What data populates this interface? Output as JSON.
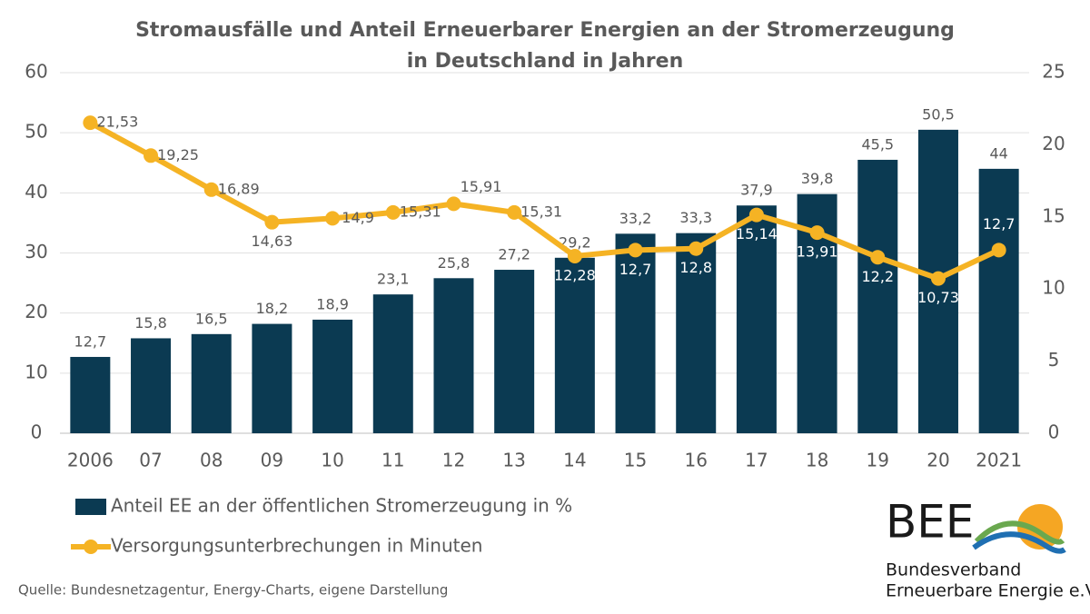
{
  "chart_data": {
    "type": "combo",
    "title": [
      "Stromausfälle und Anteil Erneuerbarer Energien an der Stromerzeugung",
      "in Deutschland in Jahren"
    ],
    "categories": [
      "2006",
      "07",
      "08",
      "09",
      "10",
      "11",
      "12",
      "13",
      "14",
      "15",
      "16",
      "17",
      "18",
      "19",
      "20",
      "2021"
    ],
    "series": [
      {
        "name": "Anteil EE an der öffentlichen Stromerzeugung in %",
        "type": "bar",
        "color": "#0b3a52",
        "values": [
          12.7,
          15.8,
          16.5,
          18.2,
          18.9,
          23.1,
          25.8,
          27.2,
          29.2,
          33.2,
          33.3,
          37.9,
          39.8,
          45.5,
          50.5,
          44
        ],
        "value_labels": [
          "12,7",
          "15,8",
          "16,5",
          "18,2",
          "18,9",
          "23,1",
          "25,8",
          "27,2",
          "29,2",
          "33,2",
          "33,3",
          "37,9",
          "39,8",
          "45,5",
          "50,5",
          "44"
        ]
      },
      {
        "name": "Versorgungsunterbrechungen in Minuten",
        "type": "line",
        "axis": "y2",
        "color": "#f5b324",
        "values": [
          21.53,
          19.25,
          16.89,
          14.63,
          14.9,
          15.31,
          15.91,
          15.31,
          12.28,
          12.7,
          12.8,
          15.14,
          13.91,
          12.2,
          10.73,
          12.7
        ],
        "value_labels": [
          "21,53",
          "19,25",
          "16,89",
          "14,63",
          "14,9",
          "15,31",
          "15,91",
          "15,31",
          "12,28",
          "12,7",
          "12,8",
          "15,14",
          "13,91",
          "12,2",
          "10,73",
          "12,7"
        ]
      }
    ],
    "ylim": [
      0,
      60
    ],
    "yticks": [
      0,
      10,
      20,
      30,
      40,
      50,
      60
    ],
    "y2lim": [
      0,
      25
    ],
    "y2ticks": [
      0,
      5,
      10,
      15,
      20,
      25
    ],
    "grid": true,
    "legend": "bottom-left",
    "source": "Quelle: Bundesnetzagentur, Energy-Charts, eigene Darstellung"
  },
  "logo": {
    "short": "BEE",
    "line1": "Bundesverband",
    "line2": "Erneuerbare Energie e.V."
  }
}
